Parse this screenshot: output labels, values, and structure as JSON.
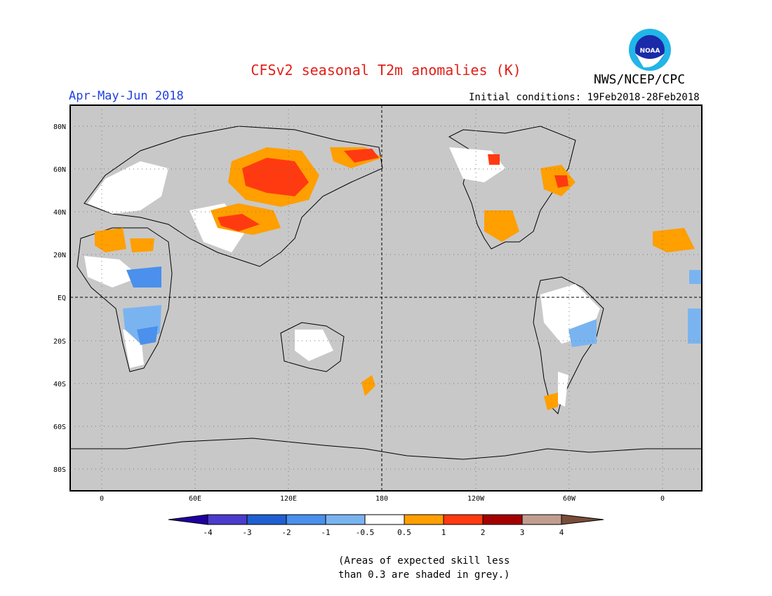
{
  "header": {
    "title": "CFSv2 seasonal T2m anomalies (K)",
    "season": "Apr-May-Jun 2018",
    "initial_conditions": "Initial conditions: 19Feb2018-28Feb2018",
    "agency": "NWS/NCEP/CPC",
    "logo_text": "NOAA"
  },
  "map": {
    "lat_labels": [
      "80N",
      "60N",
      "40N",
      "20N",
      "EQ",
      "20S",
      "40S",
      "60S",
      "80S"
    ],
    "lon_labels": [
      "0",
      "60E",
      "120E",
      "180",
      "120W",
      "60W",
      "0"
    ]
  },
  "colorbar": {
    "labels": [
      "-4",
      "-3",
      "-2",
      "-1",
      "-0.5",
      "0.5",
      "1",
      "2",
      "3",
      "4"
    ],
    "colors": [
      "#1e00a0",
      "#4a3ccc",
      "#1f60d0",
      "#4a90ec",
      "#7ab4f0",
      "#ffffff",
      "#ff9f00",
      "#ff3a10",
      "#a50000",
      "#c19d90",
      "#7a4c3a"
    ],
    "low_skill_color": "#c8c8c8"
  },
  "footnote": {
    "line1": "(Areas of expected skill less",
    "line2": "than 0.3 are shaded in grey.)"
  }
}
